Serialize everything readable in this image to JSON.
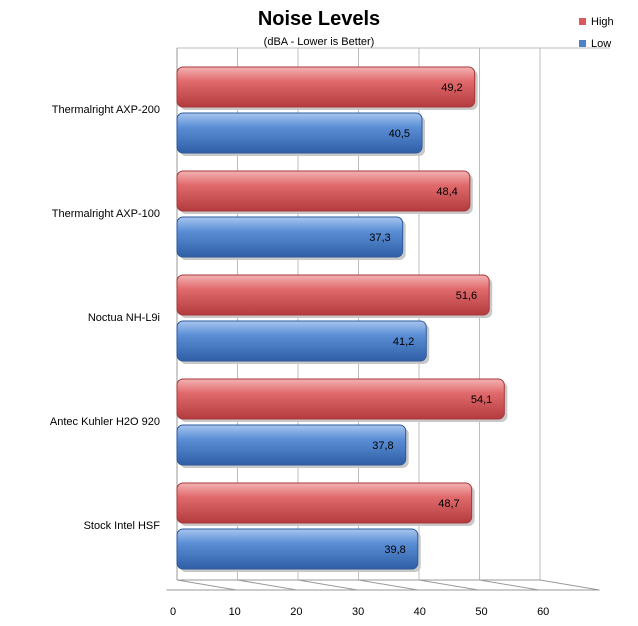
{
  "chart_data": {
    "type": "bar",
    "orientation": "horizontal",
    "title": "Noise Levels",
    "subtitle": "(dBA - Lower is Better)",
    "categories": [
      "Thermalright AXP-200",
      "Thermalright AXP-100",
      "Noctua NH-L9i",
      "Antec Kuhler H2O 920",
      "Stock Intel HSF"
    ],
    "series": [
      {
        "name": "High",
        "color": "#d9595c",
        "values": [
          49.2,
          48.4,
          51.6,
          54.1,
          48.7
        ],
        "labels": [
          "49,2",
          "48,4",
          "51,6",
          "54,1",
          "48,7"
        ]
      },
      {
        "name": "Low",
        "color": "#4f81c7",
        "values": [
          40.5,
          37.3,
          41.2,
          37.8,
          39.8
        ],
        "labels": [
          "40,5",
          "37,3",
          "41,2",
          "37,8",
          "39,8"
        ]
      }
    ],
    "xlim": [
      0,
      60
    ],
    "xticks": [
      "0",
      "10",
      "20",
      "30",
      "40",
      "50",
      "60"
    ],
    "grid": true,
    "legend": "top-right"
  }
}
